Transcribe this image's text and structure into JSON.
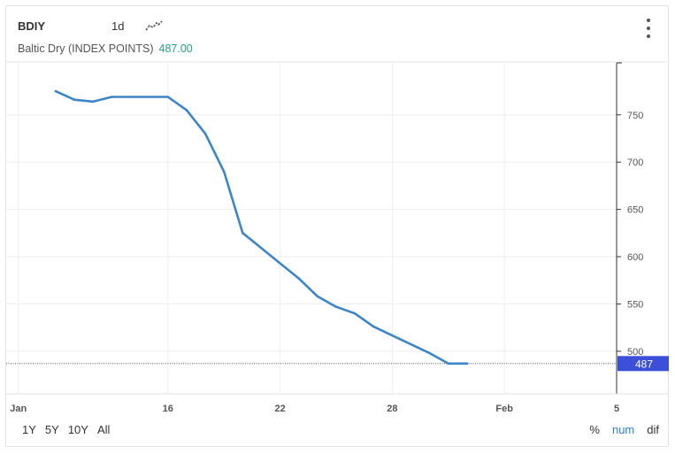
{
  "header": {
    "symbol": "BDIY",
    "interval": "1d",
    "chart_type_icon": "line-chart-icon",
    "menu_icon": "vertical-dots-icon"
  },
  "subtitle": {
    "series_label": "Baltic Dry (INDEX POINTS)",
    "last_value": "487.00"
  },
  "range_buttons": [
    "1Y",
    "5Y",
    "10Y",
    "All"
  ],
  "mode_buttons": [
    {
      "label": "%",
      "active": false
    },
    {
      "label": "num",
      "active": true
    },
    {
      "label": "dif",
      "active": false
    }
  ],
  "colors": {
    "line": "#3d85c6",
    "last_badge": "#3b4fd8",
    "grid": "#eeeeee",
    "axis_text": "#555555"
  },
  "chart_data": {
    "type": "line",
    "title": "",
    "xlabel": "",
    "ylabel": "",
    "x_tick_labels": [
      "Jan",
      "16",
      "22",
      "28",
      "Feb",
      "5"
    ],
    "y_tick_labels": [
      "500",
      "550",
      "600",
      "650",
      "700",
      "750"
    ],
    "ylim": [
      455,
      805
    ],
    "grid": true,
    "last_value_label": "487",
    "last_value": 487,
    "series": [
      {
        "x": [
          "Jan 10",
          "Jan 11",
          "Jan 12",
          "Jan 13",
          "Jan 16",
          "Jan 17",
          "Jan 18",
          "Jan 19",
          "Jan 20",
          "Jan 23",
          "Jan 24",
          "Jan 25",
          "Jan 26",
          "Jan 27",
          "Jan 30",
          "Jan 31",
          "Feb 1"
        ],
        "values": [
          775,
          766,
          764,
          769,
          769,
          755,
          730,
          690,
          625,
          577,
          558,
          547,
          540,
          526,
          498,
          487,
          487
        ]
      }
    ]
  }
}
